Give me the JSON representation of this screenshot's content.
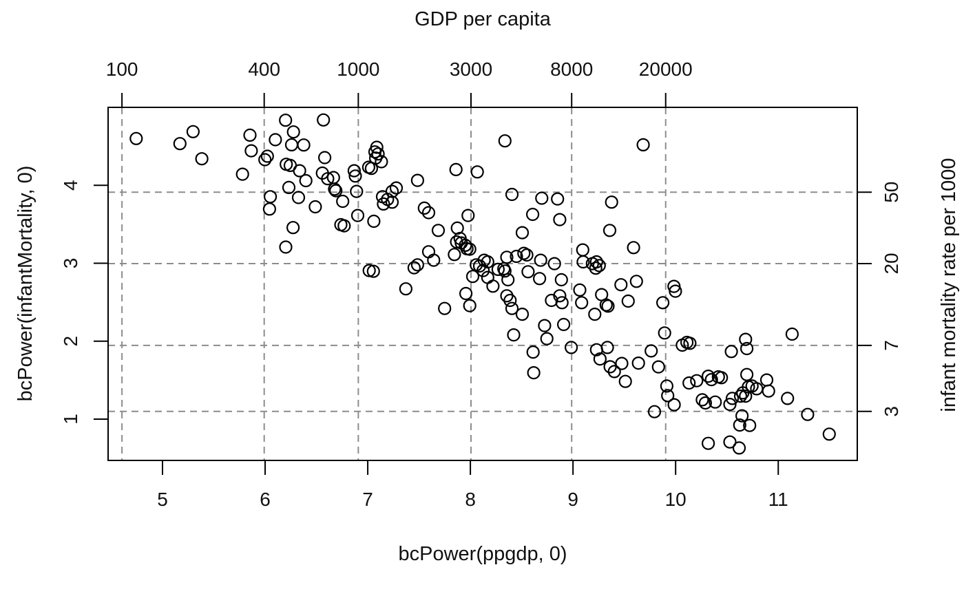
{
  "chart_data": {
    "type": "scatter",
    "top_axis": {
      "title": "GDP per capita",
      "ticks": [
        {
          "label": "100",
          "v": 4.605
        },
        {
          "label": "400",
          "v": 5.991
        },
        {
          "label": "1000",
          "v": 6.908
        },
        {
          "label": "3000",
          "v": 8.006
        },
        {
          "label": "8000",
          "v": 8.987
        },
        {
          "label": "20000",
          "v": 9.903
        }
      ]
    },
    "bottom_axis": {
      "title": "bcPower(ppgdp, 0)",
      "ticks": [
        {
          "label": "5",
          "v": 5
        },
        {
          "label": "6",
          "v": 6
        },
        {
          "label": "7",
          "v": 7
        },
        {
          "label": "8",
          "v": 8
        },
        {
          "label": "9",
          "v": 9
        },
        {
          "label": "10",
          "v": 10
        },
        {
          "label": "11",
          "v": 11
        }
      ]
    },
    "left_axis": {
      "title": "bcPower(infantMortality, 0)",
      "ticks": [
        {
          "label": "1",
          "w": 1
        },
        {
          "label": "2",
          "w": 2
        },
        {
          "label": "3",
          "w": 3
        },
        {
          "label": "4",
          "w": 4
        }
      ]
    },
    "right_axis": {
      "title": "infant mortality rate per 1000",
      "ticks": [
        {
          "label": "50",
          "w": 3.912
        },
        {
          "label": "20",
          "w": 2.996
        },
        {
          "label": "7",
          "w": 1.946
        },
        {
          "label": "3",
          "w": 1.099
        }
      ]
    },
    "xlim": [
      4.47,
      11.77
    ],
    "ylim": [
      0.47,
      5.0
    ],
    "grid": {
      "style": "dashed",
      "on": true
    },
    "legend": {
      "on": false
    },
    "marker": {
      "shape": "open-circle",
      "radius": 8.5,
      "stroke_width": 2.2
    },
    "colors": {
      "background": "#ffffff",
      "foreground": "#000000",
      "text": "#111111",
      "grid": "#8c8c8c"
    },
    "points": [
      [
        4.744,
        4.6
      ],
      [
        5.17,
        4.535
      ],
      [
        5.298,
        4.688
      ],
      [
        5.383,
        4.34
      ],
      [
        5.852,
        4.643
      ],
      [
        5.865,
        4.443
      ],
      [
        5.78,
        4.143
      ],
      [
        6.022,
        4.373
      ],
      [
        5.998,
        4.329
      ],
      [
        6.1,
        4.585
      ],
      [
        6.199,
        4.835
      ],
      [
        6.276,
        4.685
      ],
      [
        6.258,
        4.52
      ],
      [
        6.376,
        4.517
      ],
      [
        6.568,
        4.838
      ],
      [
        6.206,
        4.27
      ],
      [
        6.245,
        4.255
      ],
      [
        6.336,
        4.187
      ],
      [
        6.397,
        4.06
      ],
      [
        6.231,
        3.972
      ],
      [
        6.581,
        4.355
      ],
      [
        6.558,
        4.157
      ],
      [
        6.61,
        4.084
      ],
      [
        6.666,
        4.099
      ],
      [
        6.677,
        3.951
      ],
      [
        6.689,
        3.931
      ],
      [
        6.325,
        3.843
      ],
      [
        6.489,
        3.724
      ],
      [
        6.051,
        3.854
      ],
      [
        6.043,
        3.695
      ],
      [
        6.272,
        3.457
      ],
      [
        6.756,
        3.795
      ],
      [
        6.738,
        3.494
      ],
      [
        6.77,
        3.48
      ],
      [
        6.201,
        3.207
      ],
      [
        6.868,
        4.187
      ],
      [
        6.879,
        4.119
      ],
      [
        6.891,
        3.922
      ],
      [
        6.902,
        3.613
      ],
      [
        7.088,
        4.488
      ],
      [
        7.07,
        4.429
      ],
      [
        7.101,
        4.402
      ],
      [
        7.077,
        4.349
      ],
      [
        7.133,
        4.302
      ],
      [
        7.009,
        4.232
      ],
      [
        7.036,
        4.217
      ],
      [
        7.86,
        4.202
      ],
      [
        8.068,
        4.172
      ],
      [
        8.337,
        4.57
      ],
      [
        7.485,
        4.063
      ],
      [
        7.278,
        3.966
      ],
      [
        7.238,
        3.922
      ],
      [
        7.144,
        3.854
      ],
      [
        7.193,
        3.819
      ],
      [
        7.153,
        3.76
      ],
      [
        7.238,
        3.783
      ],
      [
        8.405,
        3.883
      ],
      [
        8.696,
        3.834
      ],
      [
        8.849,
        3.825
      ],
      [
        9.376,
        3.784
      ],
      [
        7.059,
        3.539
      ],
      [
        7.552,
        3.707
      ],
      [
        7.593,
        3.649
      ],
      [
        8.607,
        3.627
      ],
      [
        8.871,
        3.56
      ],
      [
        7.978,
        3.613
      ],
      [
        7.687,
        3.421
      ],
      [
        7.873,
        3.451
      ],
      [
        7.9,
        3.318
      ],
      [
        7.866,
        3.274
      ],
      [
        7.911,
        3.26
      ],
      [
        7.951,
        3.23
      ],
      [
        7.967,
        3.185
      ],
      [
        7.994,
        3.18
      ],
      [
        7.844,
        3.112
      ],
      [
        7.593,
        3.147
      ],
      [
        7.642,
        3.039
      ],
      [
        7.485,
        2.98
      ],
      [
        8.506,
        3.392
      ],
      [
        8.521,
        3.127
      ],
      [
        8.55,
        3.106
      ],
      [
        8.449,
        3.088
      ],
      [
        8.355,
        3.077
      ],
      [
        8.135,
        3.039
      ],
      [
        8.169,
        3.018
      ],
      [
        8.057,
        2.98
      ],
      [
        8.09,
        2.965
      ],
      [
        8.124,
        2.906
      ],
      [
        8.169,
        2.818
      ],
      [
        8.27,
        2.921
      ],
      [
        8.326,
        2.929
      ],
      [
        8.337,
        2.9
      ],
      [
        8.366,
        2.788
      ],
      [
        8.685,
        3.039
      ],
      [
        8.562,
        2.891
      ],
      [
        8.674,
        2.803
      ],
      [
        8.819,
        2.995
      ],
      [
        8.887,
        2.788
      ],
      [
        7.014,
        2.906
      ],
      [
        7.055,
        2.897
      ],
      [
        7.452,
        2.942
      ],
      [
        9.095,
        3.171
      ],
      [
        9.099,
        3.018
      ],
      [
        9.189,
        2.995
      ],
      [
        9.229,
        3.018
      ],
      [
        9.256,
        2.971
      ],
      [
        9.222,
        2.936
      ],
      [
        7.371,
        2.671
      ],
      [
        9.358,
        3.421
      ],
      [
        9.684,
        4.52
      ],
      [
        9.59,
        3.2
      ],
      [
        9.467,
        2.724
      ],
      [
        9.618,
        2.768
      ],
      [
        9.984,
        2.703
      ],
      [
        7.749,
        2.42
      ],
      [
        7.956,
        2.611
      ],
      [
        7.994,
        2.456
      ],
      [
        8.355,
        2.582
      ],
      [
        8.387,
        2.523
      ],
      [
        8.405,
        2.42
      ],
      [
        8.506,
        2.346
      ],
      [
        8.422,
        2.081
      ],
      [
        8.79,
        2.523
      ],
      [
        8.871,
        2.582
      ],
      [
        8.893,
        2.494
      ],
      [
        8.723,
        2.2
      ],
      [
        8.745,
        2.032
      ],
      [
        8.909,
        2.214
      ],
      [
        8.611,
        1.86
      ],
      [
        8.617,
        1.595
      ],
      [
        8.983,
        1.919
      ],
      [
        9.066,
        2.656
      ],
      [
        9.084,
        2.494
      ],
      [
        9.212,
        2.346
      ],
      [
        9.229,
        1.89
      ],
      [
        9.263,
        1.772
      ],
      [
        9.279,
        2.597
      ],
      [
        9.323,
        2.465
      ],
      [
        9.341,
        2.45
      ],
      [
        9.335,
        1.919
      ],
      [
        9.362,
        1.672
      ],
      [
        9.538,
        2.514
      ],
      [
        9.998,
        2.641
      ],
      [
        9.875,
        2.494
      ],
      [
        9.893,
        2.105
      ],
      [
        10.065,
        1.949
      ],
      [
        10.11,
        1.984
      ],
      [
        10.139,
        1.973
      ],
      [
        11.135,
        2.09
      ],
      [
        10.682,
        2.023
      ],
      [
        10.694,
        1.905
      ],
      [
        10.543,
        1.867
      ],
      [
        9.762,
        1.875
      ],
      [
        9.403,
        1.61
      ],
      [
        9.475,
        1.714
      ],
      [
        9.638,
        1.719
      ],
      [
        9.51,
        1.484
      ],
      [
        9.833,
        1.67
      ],
      [
        9.914,
        1.425
      ],
      [
        9.923,
        1.301
      ],
      [
        9.986,
        1.184
      ],
      [
        10.131,
        1.463
      ],
      [
        10.205,
        1.493
      ],
      [
        10.318,
        1.551
      ],
      [
        10.349,
        1.507
      ],
      [
        10.417,
        1.542
      ],
      [
        10.446,
        1.531
      ],
      [
        10.694,
        1.572
      ],
      [
        10.709,
        1.414
      ],
      [
        10.745,
        1.425
      ],
      [
        10.79,
        1.389
      ],
      [
        10.655,
        1.336
      ],
      [
        10.682,
        1.295
      ],
      [
        10.633,
        1.295
      ],
      [
        10.552,
        1.266
      ],
      [
        10.529,
        1.189
      ],
      [
        10.26,
        1.248
      ],
      [
        10.29,
        1.207
      ],
      [
        10.386,
        1.219
      ],
      [
        10.888,
        1.502
      ],
      [
        10.906,
        1.36
      ],
      [
        11.09,
        1.266
      ],
      [
        9.794,
        1.095
      ],
      [
        10.647,
        1.042
      ],
      [
        10.625,
        0.924
      ],
      [
        10.721,
        0.919
      ],
      [
        11.286,
        1.06
      ],
      [
        11.497,
        0.807
      ],
      [
        10.318,
        0.689
      ],
      [
        10.529,
        0.707
      ],
      [
        10.619,
        0.63
      ],
      [
        8.023,
        2.83
      ],
      [
        8.22,
        2.706
      ]
    ]
  }
}
